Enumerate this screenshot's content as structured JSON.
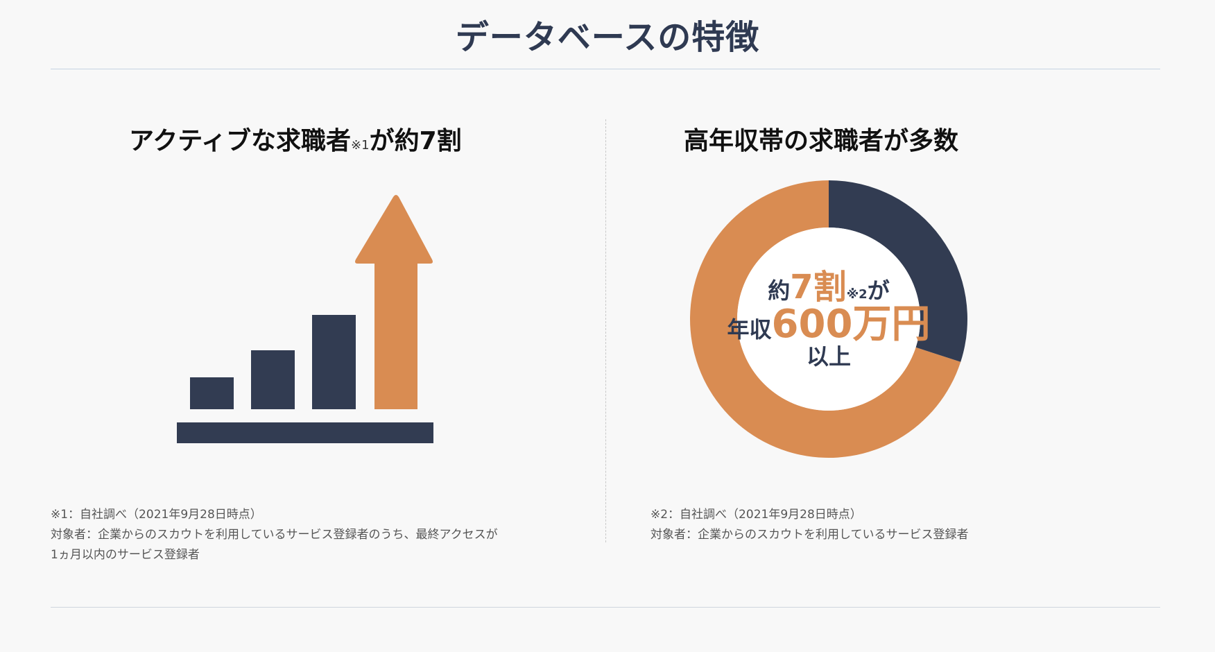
{
  "header": {
    "title": "データベースの特徴"
  },
  "left_panel": {
    "title_main": "アクティブな求職者",
    "title_mark": "※1",
    "title_tail": "が約7割",
    "footnote_lines": [
      "※1：自社調べ（2021年9月28日時点）",
      "対象者：企業からのスカウトを利用しているサービス登録者のうち、最終アクセスが",
      "1ヵ月以内のサービス登録者"
    ]
  },
  "right_panel": {
    "title": "高年収帯の求職者が多数",
    "donut": {
      "line1_prefix": "約",
      "line1_value": "7割",
      "line1_mark": "※2",
      "line1_suffix": "が",
      "line2_prefix": "年収",
      "line2_value": "600万円",
      "line3": "以上"
    },
    "footnote_lines": [
      "※2：自社調べ（2021年9月28日時点）",
      "対象者：企業からのスカウトを利用しているサービス登録者"
    ]
  },
  "chart_data": {
    "type": "pie",
    "values": [
      70,
      30
    ],
    "colors": [
      "#d98c52",
      "#323c52"
    ]
  },
  "colors": {
    "navy": "#323c52",
    "orange": "#d98c52",
    "title": "#2f3a52"
  }
}
